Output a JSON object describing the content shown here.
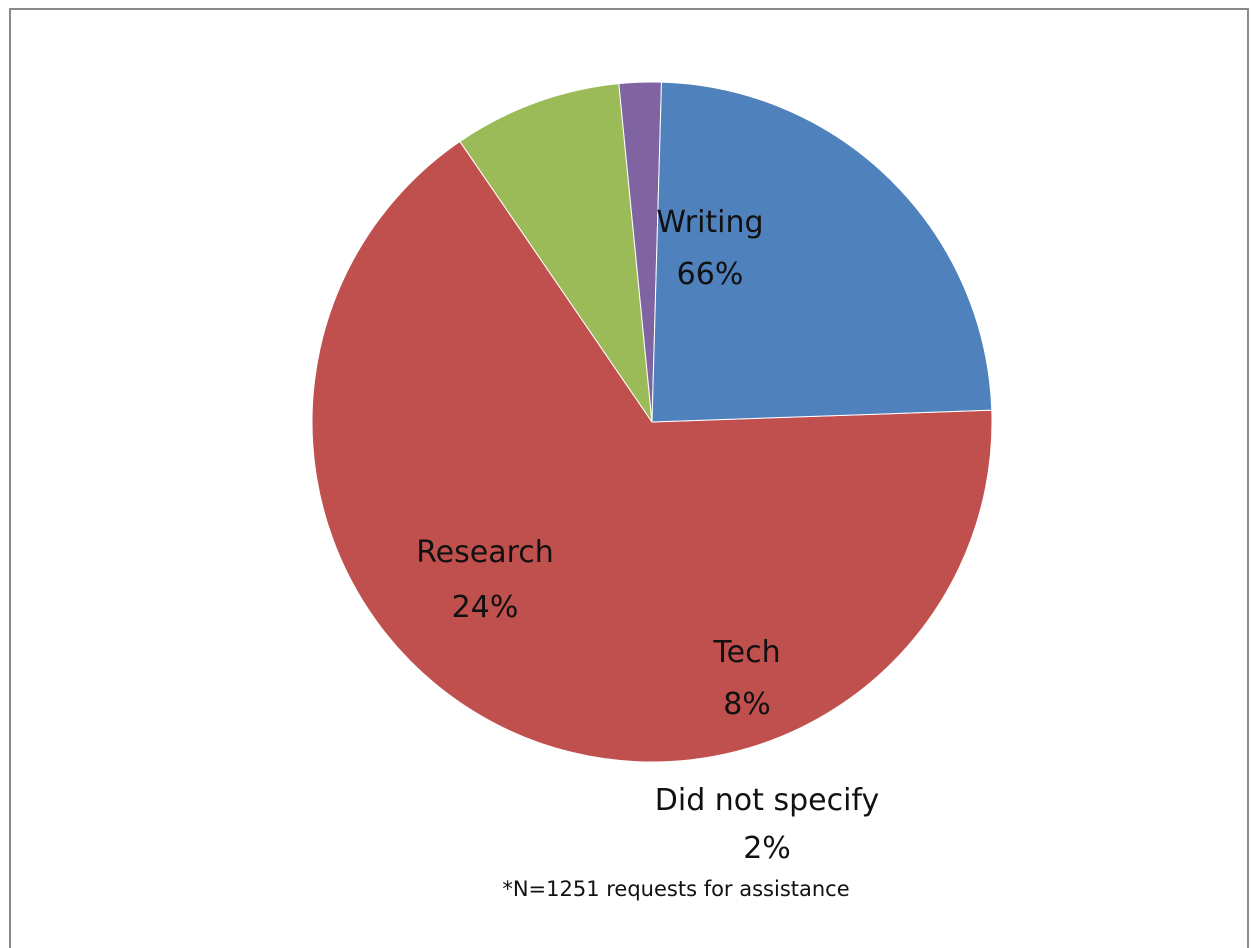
{
  "chart_data": {
    "type": "pie",
    "slices": [
      {
        "name": "Writing",
        "value": 66,
        "label": "66%",
        "color": "#c0504d"
      },
      {
        "name": "Tech",
        "value": 8,
        "label": "8%",
        "color": "#9bbb59"
      },
      {
        "name": "Did not specify",
        "value": 2,
        "label": "2%",
        "color": "#8064a2"
      },
      {
        "name": "Research",
        "value": 24,
        "label": "24%",
        "color": "#4f81bd"
      }
    ],
    "footnote": "*N=1251 requests for assistance",
    "legend": "none"
  }
}
